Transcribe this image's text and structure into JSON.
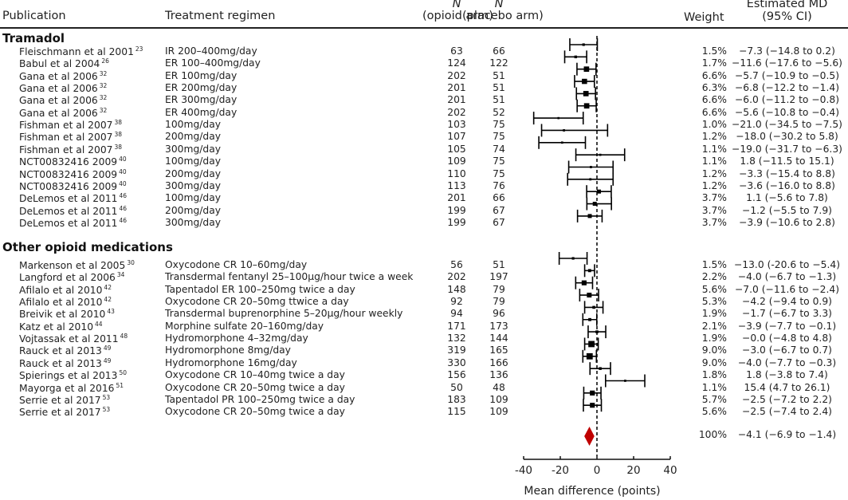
{
  "headers": {
    "publication": "Publication",
    "regimen": "Treatment regimen",
    "n_label": "N",
    "opioid_arm": "(opioid arm)",
    "placebo_arm": "(placebo arm)",
    "weight": "Weight",
    "md_line1": "Estimated MD",
    "md_line2": "(95% CI)"
  },
  "chart_data": {
    "type": "forest",
    "xlabel": "Mean difference (points)",
    "xlim": [
      -40,
      40
    ],
    "xticks": [
      -40,
      -20,
      0,
      20,
      40
    ],
    "xtick_labels": [
      "-40",
      "-20",
      "0",
      "20",
      "40"
    ],
    "reference_line": 0,
    "marker_color": "#000000",
    "pooled_color": "#c00000",
    "groups": [
      {
        "name": "Tramadol",
        "studies": [
          {
            "pub": "Fleischmann et al 2001",
            "ref": "23",
            "regimen": "IR 200–400mg/day",
            "n_opioid": 63,
            "n_placebo": 66,
            "weight": "1.5%",
            "w": 1.5,
            "md": -7.3,
            "lo": -14.8,
            "hi": 0.2,
            "ci_text": "−7.3 (−14.8 to 0.2)"
          },
          {
            "pub": "Babul et al 2004",
            "ref": "26",
            "regimen": "ER 100–400mg/day",
            "n_opioid": 124,
            "n_placebo": 122,
            "weight": "1.7%",
            "w": 1.7,
            "md": -11.6,
            "lo": -17.6,
            "hi": -5.6,
            "ci_text": "−11.6 (−17.6 to −5.6)"
          },
          {
            "pub": "Gana et al 2006",
            "ref": "32",
            "regimen": "ER 100mg/day",
            "n_opioid": 202,
            "n_placebo": 51,
            "weight": "6.6%",
            "w": 6.6,
            "md": -5.7,
            "lo": -10.9,
            "hi": -0.5,
            "ci_text": "−5.7 (−10.9 to −0.5)"
          },
          {
            "pub": "Gana et al 2006",
            "ref": "32",
            "regimen": "ER 200mg/day",
            "n_opioid": 201,
            "n_placebo": 51,
            "weight": "6.3%",
            "w": 6.3,
            "md": -6.8,
            "lo": -12.2,
            "hi": -1.4,
            "ci_text": "−6.8 (−12.2 to −1.4)"
          },
          {
            "pub": "Gana et al 2006",
            "ref": "32",
            "regimen": "ER 300mg/day",
            "n_opioid": 201,
            "n_placebo": 51,
            "weight": "6.6%",
            "w": 6.6,
            "md": -6.0,
            "lo": -11.2,
            "hi": -0.8,
            "ci_text": "−6.0 (−11.2 to −0.8)"
          },
          {
            "pub": "Gana et al 2006",
            "ref": "32",
            "regimen": "ER 400mg/day",
            "n_opioid": 202,
            "n_placebo": 52,
            "weight": "6.6%",
            "w": 6.6,
            "md": -5.6,
            "lo": -10.8,
            "hi": -0.4,
            "ci_text": "−5.6 (−10.8 to −0.4)"
          },
          {
            "pub": "Fishman et al 2007",
            "ref": "38",
            "regimen": "100mg/day",
            "n_opioid": 103,
            "n_placebo": 75,
            "weight": "1.0%",
            "w": 1.0,
            "md": -21.0,
            "lo": -34.5,
            "hi": -7.5,
            "ci_text": "−21.0 (−34.5 to −7.5)"
          },
          {
            "pub": "Fishman et al 2007",
            "ref": "38",
            "regimen": "200mg/day",
            "n_opioid": 107,
            "n_placebo": 75,
            "weight": "1.2%",
            "w": 1.2,
            "md": -18.0,
            "lo": -30.2,
            "hi": 5.8,
            "ci_text": "−18.0 (−30.2 to 5.8)"
          },
          {
            "pub": "Fishman et al 2007",
            "ref": "38",
            "regimen": "300mg/day",
            "n_opioid": 105,
            "n_placebo": 74,
            "weight": "1.1%",
            "w": 1.1,
            "md": -19.0,
            "lo": -31.7,
            "hi": -6.3,
            "ci_text": "−19.0 (−31.7 to −6.3)"
          },
          {
            "pub": "NCT00832416 2009",
            "ref": "40",
            "regimen": "100mg/day",
            "n_opioid": 109,
            "n_placebo": 75,
            "weight": "1.1%",
            "w": 1.1,
            "md": 1.8,
            "lo": -11.5,
            "hi": 15.1,
            "ci_text": "1.8 (−11.5 to 15.1)"
          },
          {
            "pub": "NCT00832416 2009",
            "ref": "40",
            "regimen": "200mg/day",
            "n_opioid": 110,
            "n_placebo": 75,
            "weight": "1.2%",
            "w": 1.2,
            "md": -3.3,
            "lo": -15.4,
            "hi": 8.8,
            "ci_text": "−3.3 (−15.4 to 8.8)"
          },
          {
            "pub": "NCT00832416 2009",
            "ref": "40",
            "regimen": "300mg/day",
            "n_opioid": 113,
            "n_placebo": 76,
            "weight": "1.2%",
            "w": 1.2,
            "md": -3.6,
            "lo": -16.0,
            "hi": 8.8,
            "ci_text": "−3.6 (−16.0 to 8.8)"
          },
          {
            "pub": "DeLemos et al 2011",
            "ref": "46",
            "regimen": "100mg/day",
            "n_opioid": 201,
            "n_placebo": 66,
            "weight": "3.7%",
            "w": 3.7,
            "md": 1.1,
            "lo": -5.6,
            "hi": 7.8,
            "ci_text": "1.1 (−5.6 to 7.8)"
          },
          {
            "pub": "DeLemos et al 2011",
            "ref": "46",
            "regimen": "200mg/day",
            "n_opioid": 199,
            "n_placebo": 67,
            "weight": "3.7%",
            "w": 3.7,
            "md": -1.2,
            "lo": -5.5,
            "hi": 7.9,
            "ci_text": "−1.2 (−5.5 to 7.9)"
          },
          {
            "pub": "DeLemos et al 2011",
            "ref": "46",
            "regimen": "300mg/day",
            "n_opioid": 199,
            "n_placebo": 67,
            "weight": "3.7%",
            "w": 3.7,
            "md": -3.9,
            "lo": -10.6,
            "hi": 2.8,
            "ci_text": "−3.9 (−10.6 to 2.8)"
          }
        ]
      },
      {
        "name": "Other opioid medications",
        "studies": [
          {
            "pub": "Markenson et al 2005",
            "ref": "30",
            "regimen": "Oxycodone CR 10–60mg/day",
            "n_opioid": 56,
            "n_placebo": 51,
            "weight": "1.5%",
            "w": 1.5,
            "md": -13.0,
            "lo": -20.6,
            "hi": -5.4,
            "ci_text": "−13.0 (-20.6 to −5.4)"
          },
          {
            "pub": "Langford et al 2006",
            "ref": "34",
            "regimen": "Transdermal fentanyl 25–100µg/hour twice a week",
            "n_opioid": 202,
            "n_placebo": 197,
            "weight": "2.2%",
            "w": 2.2,
            "md": -4.0,
            "lo": -6.7,
            "hi": -1.3,
            "ci_text": "−4.0 (−6.7 to −1.3)"
          },
          {
            "pub": "Afilalo et al 2010",
            "ref": "42",
            "regimen": "Tapentadol ER 100–250mg twice a day",
            "n_opioid": 148,
            "n_placebo": 79,
            "weight": "5.6%",
            "w": 5.6,
            "md": -7.0,
            "lo": -11.6,
            "hi": -2.4,
            "ci_text": "−7.0 (−11.6 to −2.4)"
          },
          {
            "pub": "Afilalo et al 2010",
            "ref": "42",
            "regimen": "Oxycodone CR 20–50mg ttwice a day",
            "n_opioid": 92,
            "n_placebo": 79,
            "weight": "5.3%",
            "w": 5.3,
            "md": -4.2,
            "lo": -9.4,
            "hi": 0.9,
            "ci_text": "−4.2 (−9.4 to 0.9)"
          },
          {
            "pub": "Breivik et al 2010",
            "ref": "43",
            "regimen": "Transdermal buprenorphine 5–20µg/hour weekly",
            "n_opioid": 94,
            "n_placebo": 96,
            "weight": "1.9%",
            "w": 1.9,
            "md": -1.7,
            "lo": -6.7,
            "hi": 3.3,
            "ci_text": "−1.7 (−6.7 to 3.3)"
          },
          {
            "pub": "Katz et al 2010",
            "ref": "44",
            "regimen": "Morphine sulfate 20–160mg/day",
            "n_opioid": 171,
            "n_placebo": 173,
            "weight": "2.1%",
            "w": 2.1,
            "md": -3.9,
            "lo": -7.7,
            "hi": -0.1,
            "ci_text": "−3.9 (−7.7 to −0.1)"
          },
          {
            "pub": "Vojtassak et al 2011",
            "ref": "48",
            "regimen": "Hydromorphone 4–32mg/day",
            "n_opioid": 132,
            "n_placebo": 144,
            "weight": "1.9%",
            "w": 1.9,
            "md": -0.0,
            "lo": -4.8,
            "hi": 4.8,
            "ci_text": "−0.0 (−4.8 to 4.8)"
          },
          {
            "pub": "Rauck et al 2013",
            "ref": "49",
            "regimen": "Hydromorphone 8mg/day",
            "n_opioid": 319,
            "n_placebo": 165,
            "weight": "9.0%",
            "w": 9.0,
            "md": -3.0,
            "lo": -6.7,
            "hi": 0.7,
            "ci_text": "−3.0 (−6.7 to 0.7)"
          },
          {
            "pub": "Rauck et al 2013",
            "ref": "49",
            "regimen": "Hydromorphone 16mg/day",
            "n_opioid": 330,
            "n_placebo": 166,
            "weight": "9.0%",
            "w": 9.0,
            "md": -4.0,
            "lo": -7.7,
            "hi": -0.3,
            "ci_text": "−4.0 (−7.7 to −0.3)"
          },
          {
            "pub": "Spierings et al 2013",
            "ref": "50",
            "regimen": "Oxycodone CR 10–40mg twice a day",
            "n_opioid": 156,
            "n_placebo": 136,
            "weight": "1.8%",
            "w": 1.8,
            "md": 1.8,
            "lo": -3.8,
            "hi": 7.4,
            "ci_text": "1.8 (−3.8 to 7.4)"
          },
          {
            "pub": "Mayorga et al 2016",
            "ref": "51",
            "regimen": "Oxycodone CR 20–50mg twice a day",
            "n_opioid": 50,
            "n_placebo": 48,
            "weight": "1.1%",
            "w": 1.1,
            "md": 15.4,
            "lo": 4.7,
            "hi": 26.1,
            "ci_text": "15.4 (4.7 to 26.1)"
          },
          {
            "pub": "Serrie et al 2017",
            "ref": "53",
            "regimen": "Tapentadol PR 100–250mg twice a day",
            "n_opioid": 183,
            "n_placebo": 109,
            "weight": "5.7%",
            "w": 5.7,
            "md": -2.5,
            "lo": -7.2,
            "hi": 2.2,
            "ci_text": "−2.5 (−7.2 to 2.2)"
          },
          {
            "pub": "Serrie et al 2017",
            "ref": "53",
            "regimen": "Oxycodone CR 20–50mg twice a day",
            "n_opioid": 115,
            "n_placebo": 109,
            "weight": "5.6%",
            "w": 5.6,
            "md": -2.5,
            "lo": -7.4,
            "hi": 2.4,
            "ci_text": "−2.5 (−7.4 to 2.4)"
          }
        ]
      }
    ],
    "pooled": {
      "weight": "100%",
      "md": -4.1,
      "lo": -6.9,
      "hi": -1.4,
      "ci_text": "−4.1 (−6.9 to −1.4)"
    }
  }
}
